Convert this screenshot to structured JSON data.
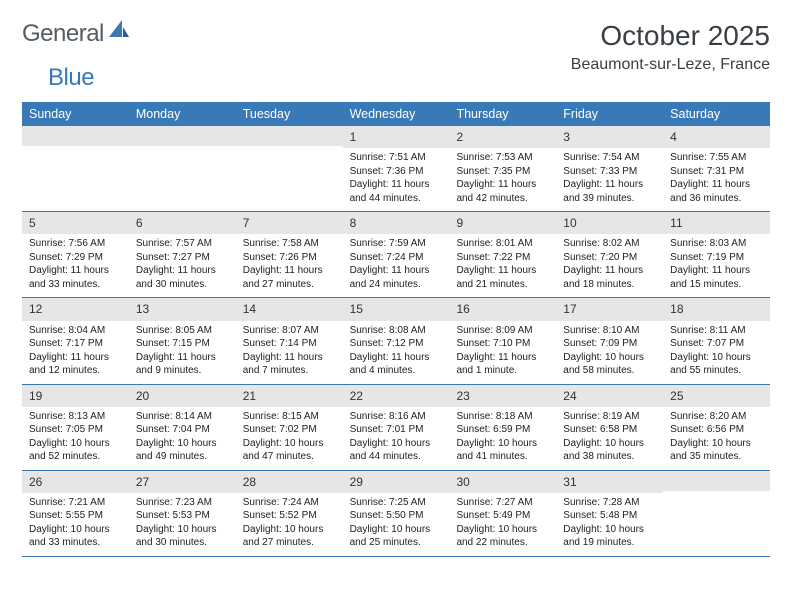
{
  "logo": {
    "text1": "General",
    "text2": "Blue"
  },
  "title": "October 2025",
  "location": "Beaumont-sur-Leze, France",
  "colors": {
    "header_bg": "#3a79b7",
    "daynum_bg": "#e6e6e6",
    "text": "#222222",
    "rule": "#3a79b7"
  },
  "weekdays": [
    "Sunday",
    "Monday",
    "Tuesday",
    "Wednesday",
    "Thursday",
    "Friday",
    "Saturday"
  ],
  "weeks": [
    [
      {
        "n": "",
        "sr": "",
        "ss": "",
        "dl1": "",
        "dl2": ""
      },
      {
        "n": "",
        "sr": "",
        "ss": "",
        "dl1": "",
        "dl2": ""
      },
      {
        "n": "",
        "sr": "",
        "ss": "",
        "dl1": "",
        "dl2": ""
      },
      {
        "n": "1",
        "sr": "Sunrise: 7:51 AM",
        "ss": "Sunset: 7:36 PM",
        "dl1": "Daylight: 11 hours",
        "dl2": "and 44 minutes."
      },
      {
        "n": "2",
        "sr": "Sunrise: 7:53 AM",
        "ss": "Sunset: 7:35 PM",
        "dl1": "Daylight: 11 hours",
        "dl2": "and 42 minutes."
      },
      {
        "n": "3",
        "sr": "Sunrise: 7:54 AM",
        "ss": "Sunset: 7:33 PM",
        "dl1": "Daylight: 11 hours",
        "dl2": "and 39 minutes."
      },
      {
        "n": "4",
        "sr": "Sunrise: 7:55 AM",
        "ss": "Sunset: 7:31 PM",
        "dl1": "Daylight: 11 hours",
        "dl2": "and 36 minutes."
      }
    ],
    [
      {
        "n": "5",
        "sr": "Sunrise: 7:56 AM",
        "ss": "Sunset: 7:29 PM",
        "dl1": "Daylight: 11 hours",
        "dl2": "and 33 minutes."
      },
      {
        "n": "6",
        "sr": "Sunrise: 7:57 AM",
        "ss": "Sunset: 7:27 PM",
        "dl1": "Daylight: 11 hours",
        "dl2": "and 30 minutes."
      },
      {
        "n": "7",
        "sr": "Sunrise: 7:58 AM",
        "ss": "Sunset: 7:26 PM",
        "dl1": "Daylight: 11 hours",
        "dl2": "and 27 minutes."
      },
      {
        "n": "8",
        "sr": "Sunrise: 7:59 AM",
        "ss": "Sunset: 7:24 PM",
        "dl1": "Daylight: 11 hours",
        "dl2": "and 24 minutes."
      },
      {
        "n": "9",
        "sr": "Sunrise: 8:01 AM",
        "ss": "Sunset: 7:22 PM",
        "dl1": "Daylight: 11 hours",
        "dl2": "and 21 minutes."
      },
      {
        "n": "10",
        "sr": "Sunrise: 8:02 AM",
        "ss": "Sunset: 7:20 PM",
        "dl1": "Daylight: 11 hours",
        "dl2": "and 18 minutes."
      },
      {
        "n": "11",
        "sr": "Sunrise: 8:03 AM",
        "ss": "Sunset: 7:19 PM",
        "dl1": "Daylight: 11 hours",
        "dl2": "and 15 minutes."
      }
    ],
    [
      {
        "n": "12",
        "sr": "Sunrise: 8:04 AM",
        "ss": "Sunset: 7:17 PM",
        "dl1": "Daylight: 11 hours",
        "dl2": "and 12 minutes."
      },
      {
        "n": "13",
        "sr": "Sunrise: 8:05 AM",
        "ss": "Sunset: 7:15 PM",
        "dl1": "Daylight: 11 hours",
        "dl2": "and 9 minutes."
      },
      {
        "n": "14",
        "sr": "Sunrise: 8:07 AM",
        "ss": "Sunset: 7:14 PM",
        "dl1": "Daylight: 11 hours",
        "dl2": "and 7 minutes."
      },
      {
        "n": "15",
        "sr": "Sunrise: 8:08 AM",
        "ss": "Sunset: 7:12 PM",
        "dl1": "Daylight: 11 hours",
        "dl2": "and 4 minutes."
      },
      {
        "n": "16",
        "sr": "Sunrise: 8:09 AM",
        "ss": "Sunset: 7:10 PM",
        "dl1": "Daylight: 11 hours",
        "dl2": "and 1 minute."
      },
      {
        "n": "17",
        "sr": "Sunrise: 8:10 AM",
        "ss": "Sunset: 7:09 PM",
        "dl1": "Daylight: 10 hours",
        "dl2": "and 58 minutes."
      },
      {
        "n": "18",
        "sr": "Sunrise: 8:11 AM",
        "ss": "Sunset: 7:07 PM",
        "dl1": "Daylight: 10 hours",
        "dl2": "and 55 minutes."
      }
    ],
    [
      {
        "n": "19",
        "sr": "Sunrise: 8:13 AM",
        "ss": "Sunset: 7:05 PM",
        "dl1": "Daylight: 10 hours",
        "dl2": "and 52 minutes."
      },
      {
        "n": "20",
        "sr": "Sunrise: 8:14 AM",
        "ss": "Sunset: 7:04 PM",
        "dl1": "Daylight: 10 hours",
        "dl2": "and 49 minutes."
      },
      {
        "n": "21",
        "sr": "Sunrise: 8:15 AM",
        "ss": "Sunset: 7:02 PM",
        "dl1": "Daylight: 10 hours",
        "dl2": "and 47 minutes."
      },
      {
        "n": "22",
        "sr": "Sunrise: 8:16 AM",
        "ss": "Sunset: 7:01 PM",
        "dl1": "Daylight: 10 hours",
        "dl2": "and 44 minutes."
      },
      {
        "n": "23",
        "sr": "Sunrise: 8:18 AM",
        "ss": "Sunset: 6:59 PM",
        "dl1": "Daylight: 10 hours",
        "dl2": "and 41 minutes."
      },
      {
        "n": "24",
        "sr": "Sunrise: 8:19 AM",
        "ss": "Sunset: 6:58 PM",
        "dl1": "Daylight: 10 hours",
        "dl2": "and 38 minutes."
      },
      {
        "n": "25",
        "sr": "Sunrise: 8:20 AM",
        "ss": "Sunset: 6:56 PM",
        "dl1": "Daylight: 10 hours",
        "dl2": "and 35 minutes."
      }
    ],
    [
      {
        "n": "26",
        "sr": "Sunrise: 7:21 AM",
        "ss": "Sunset: 5:55 PM",
        "dl1": "Daylight: 10 hours",
        "dl2": "and 33 minutes."
      },
      {
        "n": "27",
        "sr": "Sunrise: 7:23 AM",
        "ss": "Sunset: 5:53 PM",
        "dl1": "Daylight: 10 hours",
        "dl2": "and 30 minutes."
      },
      {
        "n": "28",
        "sr": "Sunrise: 7:24 AM",
        "ss": "Sunset: 5:52 PM",
        "dl1": "Daylight: 10 hours",
        "dl2": "and 27 minutes."
      },
      {
        "n": "29",
        "sr": "Sunrise: 7:25 AM",
        "ss": "Sunset: 5:50 PM",
        "dl1": "Daylight: 10 hours",
        "dl2": "and 25 minutes."
      },
      {
        "n": "30",
        "sr": "Sunrise: 7:27 AM",
        "ss": "Sunset: 5:49 PM",
        "dl1": "Daylight: 10 hours",
        "dl2": "and 22 minutes."
      },
      {
        "n": "31",
        "sr": "Sunrise: 7:28 AM",
        "ss": "Sunset: 5:48 PM",
        "dl1": "Daylight: 10 hours",
        "dl2": "and 19 minutes."
      },
      {
        "n": "",
        "sr": "",
        "ss": "",
        "dl1": "",
        "dl2": ""
      }
    ]
  ]
}
